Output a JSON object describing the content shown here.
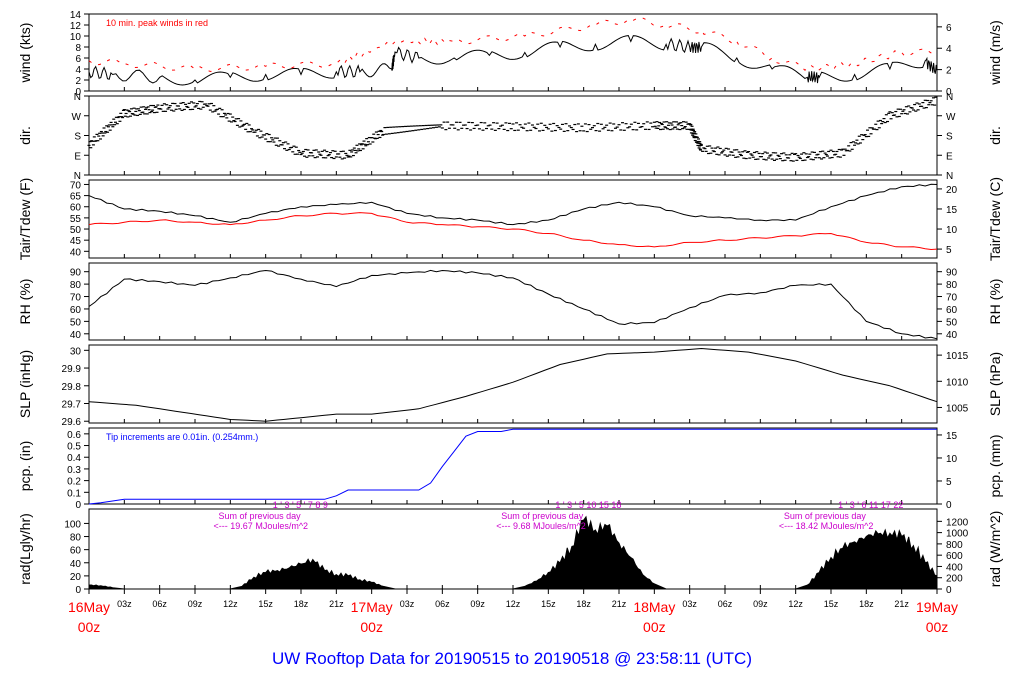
{
  "page": {
    "title": "UW Rooftop Data for 20190515  to  20190518 @ 23:58:11  (UTC)",
    "title_color": "#0000ff"
  },
  "x_axis": {
    "hour_labels": [
      "03z",
      "06z",
      "09z",
      "12z",
      "15z",
      "18z",
      "21z"
    ],
    "hour_values": [
      3,
      6,
      9,
      12,
      15,
      18,
      21
    ],
    "day_labels": [
      {
        "t": 0,
        "date": "16May",
        "hour": "00z"
      },
      {
        "t": 24,
        "date": "17May",
        "hour": "00z"
      },
      {
        "t": 48,
        "date": "18May",
        "hour": "00z"
      },
      {
        "t": 72,
        "date": "19May",
        "hour": "00z"
      }
    ],
    "range": [
      0,
      72
    ],
    "day_label_color": "#ff0000"
  },
  "colors": {
    "black": "#000000",
    "red": "#ff0000",
    "blue": "#0000ff",
    "purple": "#cc00cc"
  },
  "chart_data": [
    {
      "type": "line",
      "id": "wind",
      "ylabel": "wind (kts)",
      "ylabel2": "wind (m/s)",
      "yticks": [
        0,
        2,
        4,
        6,
        8,
        10,
        12,
        14
      ],
      "ylim": [
        0,
        14
      ],
      "yticks2": [
        0,
        2,
        4,
        6
      ],
      "annotation": "10 min. peak winds in red",
      "series": [
        {
          "color": "#000000",
          "x": [
            0,
            2,
            6,
            9,
            12,
            15,
            18,
            21,
            23,
            25.7,
            26,
            28,
            31,
            34,
            37,
            40,
            43,
            46,
            49,
            51,
            52,
            55,
            58,
            61,
            62,
            65,
            68,
            71,
            72
          ],
          "y": [
            3.5,
            3,
            2.5,
            2,
            2.5,
            3,
            3,
            3.5,
            3.5,
            4,
            7,
            6,
            6,
            6.5,
            7,
            8,
            8.5,
            9,
            8.5,
            8,
            8,
            6,
            4,
            2.5,
            2.5,
            3,
            4,
            5.5,
            3.5
          ]
        },
        {
          "color": "#ff0000",
          "x": [
            0,
            3,
            9,
            15,
            21,
            26,
            31,
            37,
            43,
            46,
            49,
            52,
            55,
            58,
            61,
            65,
            69,
            72
          ],
          "y": [
            5.5,
            5,
            4,
            4.5,
            5,
            9,
            9,
            10,
            12,
            13,
            12,
            11,
            9,
            6,
            4,
            5,
            7,
            7
          ]
        }
      ]
    },
    {
      "type": "scatter",
      "id": "dir",
      "ylabel": "dir.",
      "ylabel2": "dir.",
      "yticks": [
        "N",
        "E",
        "S",
        "W",
        "N"
      ],
      "ylim": [
        0,
        360
      ],
      "description_values": {
        "x": [
          0,
          3,
          6,
          10,
          14,
          18,
          22,
          25,
          30,
          36,
          42,
          48,
          51,
          52,
          56,
          60,
          64,
          68,
          72
        ],
        "y": [
          135,
          280,
          305,
          320,
          200,
          100,
          90,
          200,
          225,
          220,
          215,
          225,
          225,
          120,
          90,
          80,
          100,
          270,
          340
        ]
      }
    },
    {
      "type": "line",
      "id": "temp",
      "ylabel": "Tair/Tdew (F)",
      "ylabel2": "Tair/Tdew (C)",
      "yticks": [
        40,
        45,
        50,
        55,
        60,
        65,
        70
      ],
      "ylim": [
        37,
        72
      ],
      "yticks2": [
        5,
        10,
        15,
        20
      ],
      "series": [
        {
          "color": "#000000",
          "x": [
            0,
            3,
            6,
            9,
            12,
            15,
            18,
            21,
            24,
            27,
            30,
            33,
            36,
            39,
            42,
            45,
            48,
            51,
            54,
            57,
            60,
            63,
            66,
            69,
            72
          ],
          "y": [
            65,
            59,
            58,
            56,
            53,
            57,
            60,
            61,
            62,
            57,
            55,
            54,
            52,
            54,
            59,
            62,
            60,
            56,
            55,
            54,
            54,
            60,
            65,
            69,
            70
          ]
        },
        {
          "color": "#ff0000",
          "x": [
            0,
            3,
            6,
            9,
            12,
            15,
            18,
            21,
            24,
            27,
            30,
            33,
            36,
            39,
            42,
            45,
            48,
            51,
            54,
            57,
            60,
            63,
            66,
            69,
            72
          ],
          "y": [
            52,
            53,
            54,
            53,
            52,
            54,
            56,
            57,
            57,
            53,
            52,
            51,
            50,
            48,
            45,
            43,
            42,
            44,
            45,
            46,
            47,
            48,
            44,
            42,
            41
          ]
        }
      ]
    },
    {
      "type": "line",
      "id": "rh",
      "ylabel": "RH (%)",
      "ylabel2": "RH (%)",
      "yticks": [
        40,
        50,
        60,
        70,
        80,
        90
      ],
      "ylim": [
        35,
        97
      ],
      "series": [
        {
          "color": "#000000",
          "x": [
            0,
            3,
            6,
            9,
            12,
            15,
            18,
            21,
            24,
            27,
            30,
            33,
            36,
            39,
            42,
            45,
            48,
            51,
            54,
            57,
            60,
            63,
            66,
            69,
            72
          ],
          "y": [
            62,
            84,
            82,
            79,
            85,
            91,
            84,
            78,
            87,
            89,
            91,
            89,
            85,
            72,
            60,
            48,
            49,
            61,
            71,
            73,
            79,
            80,
            50,
            40,
            36
          ]
        }
      ]
    },
    {
      "type": "line",
      "id": "slp",
      "ylabel": "SLP (inHg)",
      "ylabel2": "SLP (hPa)",
      "yticks": [
        29.6,
        29.7,
        29.8,
        29.9,
        30.0
      ],
      "ylim": [
        29.59,
        30.03
      ],
      "yticks2": [
        1005,
        1010,
        1015
      ],
      "series": [
        {
          "color": "#000000",
          "x": [
            0,
            4,
            8,
            12,
            15,
            18,
            21,
            24,
            28,
            32,
            36,
            40,
            44,
            48,
            52,
            56,
            60,
            64,
            68,
            72
          ],
          "y": [
            29.71,
            29.69,
            29.65,
            29.61,
            29.6,
            29.62,
            29.64,
            29.64,
            29.67,
            29.74,
            29.82,
            29.92,
            29.98,
            29.99,
            30.01,
            29.99,
            29.94,
            29.86,
            29.8,
            29.71
          ]
        }
      ]
    },
    {
      "type": "line",
      "id": "pcp",
      "ylabel": "pcp. (in)",
      "ylabel2": "pcp. (mm)",
      "yticks": [
        0,
        0.1,
        0.2,
        0.3,
        0.4,
        0.5,
        0.6
      ],
      "ylim": [
        0,
        0.65
      ],
      "yticks2": [
        0,
        5,
        10,
        15
      ],
      "annotation": "Tip increments are 0.01in. (0.254mm.)",
      "series": [
        {
          "color": "#0000ff",
          "x": [
            0,
            1,
            3,
            20,
            21,
            22,
            23,
            28,
            29,
            30,
            31,
            32,
            33,
            35,
            36,
            72
          ],
          "y": [
            0,
            0.01,
            0.04,
            0.04,
            0.07,
            0.12,
            0.12,
            0.12,
            0.18,
            0.32,
            0.45,
            0.58,
            0.62,
            0.62,
            0.64,
            0.64
          ]
        }
      ]
    },
    {
      "type": "area",
      "id": "rad",
      "ylabel": "rad(Lgly/hr)",
      "ylabel2": "rad (W/m^2)",
      "yticks": [
        0,
        20,
        40,
        60,
        80,
        100
      ],
      "ylim": [
        0,
        122
      ],
      "yticks2": [
        0,
        200,
        400,
        600,
        800,
        1000,
        1200
      ],
      "day_notes": [
        {
          "line1": "Sum of previous day",
          "line2": "<--- 19.67 MJoules/m^2",
          "hours": "1  '  3  '  5  '  7    8    9",
          "t": 11
        },
        {
          "line1": "Sum of previous day",
          "line2": "<--- 9.68 MJoules/m^2",
          "hours": "1  '  3  '  5   10   15   18",
          "t": 35
        },
        {
          "line1": "Sum of previous day",
          "line2": "<--- 18.42 MJoules/m^2",
          "hours": "1  '  3  '  6   11   17   22",
          "t": 59
        }
      ],
      "series": [
        {
          "color": "#000000",
          "x": [
            0,
            1,
            2,
            3,
            12,
            13,
            14,
            15,
            16,
            17,
            18,
            19,
            20,
            21,
            22,
            23,
            24,
            25,
            26,
            27,
            36,
            37,
            38,
            39,
            40,
            41,
            42,
            43,
            44,
            45,
            46,
            47,
            48,
            49,
            50,
            60,
            61,
            62,
            63,
            64,
            65,
            66,
            67,
            68,
            69,
            70,
            71,
            72
          ],
          "y": [
            6,
            5,
            2,
            0,
            0,
            4,
            18,
            25,
            28,
            32,
            38,
            45,
            28,
            22,
            20,
            14,
            10,
            4,
            0,
            0,
            0,
            4,
            12,
            25,
            40,
            65,
            105,
            90,
            96,
            70,
            48,
            22,
            8,
            0,
            0,
            0,
            6,
            25,
            48,
            62,
            72,
            80,
            84,
            85,
            80,
            66,
            40,
            20
          ]
        }
      ]
    }
  ]
}
